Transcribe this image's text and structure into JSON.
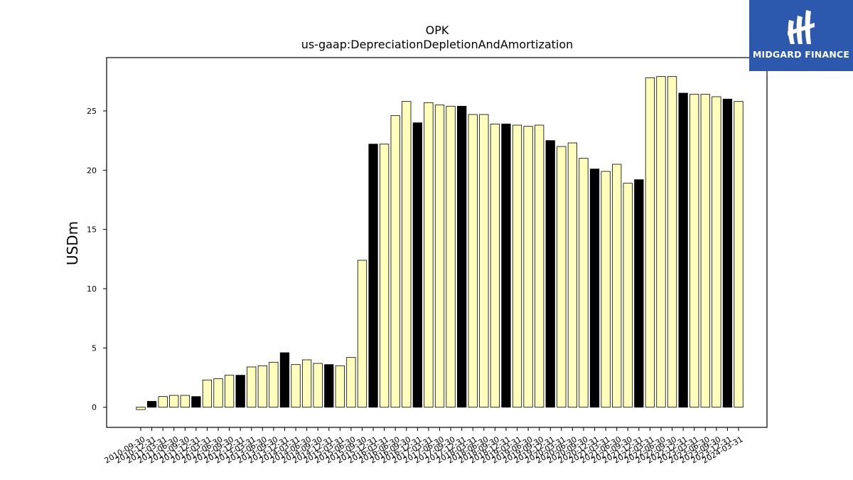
{
  "chart_data": {
    "type": "bar",
    "title": "OPK",
    "subtitle": "us-gaap:DepreciationDepletionAndAmortization",
    "xlabel": "",
    "ylabel": "USDm",
    "ylim": [
      -1.7,
      29.5
    ],
    "yticks": [
      0,
      5,
      10,
      15,
      20,
      25
    ],
    "grid": false,
    "colors": {
      "default": "#ffffbb",
      "highlight": "#000000",
      "edge": "#000000"
    },
    "categories": [
      "2010-09-30",
      "2010-12-31",
      "2011-03-31",
      "2011-06-30",
      "2011-09-30",
      "2011-12-31",
      "2012-03-31",
      "2012-06-30",
      "2012-09-30",
      "2012-12-31",
      "2013-03-31",
      "2013-06-30",
      "2013-09-30",
      "2013-12-31",
      "2014-03-31",
      "2014-06-30",
      "2014-09-30",
      "2014-12-31",
      "2015-03-31",
      "2015-06-30",
      "2015-09-30",
      "2015-12-31",
      "2016-03-31",
      "2016-06-30",
      "2016-09-30",
      "2016-12-31",
      "2017-03-31",
      "2017-06-30",
      "2017-09-30",
      "2017-12-31",
      "2018-03-31",
      "2018-06-30",
      "2018-09-30",
      "2018-12-31",
      "2019-03-31",
      "2019-06-30",
      "2019-09-30",
      "2019-12-31",
      "2020-03-31",
      "2020-06-30",
      "2020-09-30",
      "2020-12-31",
      "2021-03-31",
      "2021-06-30",
      "2021-09-30",
      "2021-12-31",
      "2022-03-31",
      "2022-06-30",
      "2022-09-30",
      "2022-12-31",
      "2023-03-31",
      "2023-06-30",
      "2023-09-30",
      "2023-12-31",
      "2024-03-31"
    ],
    "values": [
      -0.2,
      0.5,
      0.9,
      1.0,
      1.0,
      0.9,
      2.3,
      2.4,
      2.7,
      2.7,
      3.4,
      3.5,
      3.8,
      4.6,
      3.6,
      4.0,
      3.7,
      3.6,
      3.5,
      4.2,
      12.4,
      22.2,
      22.2,
      24.6,
      25.8,
      24.0,
      25.7,
      25.5,
      25.4,
      25.4,
      24.7,
      24.7,
      23.9,
      23.9,
      23.8,
      23.7,
      23.8,
      22.5,
      22.0,
      22.3,
      21.0,
      20.1,
      19.9,
      20.5,
      18.9,
      19.2,
      27.8,
      27.9,
      27.9,
      26.5,
      26.4,
      26.4,
      26.2,
      26.0,
      25.8
    ],
    "highlight": [
      false,
      true,
      false,
      false,
      false,
      true,
      false,
      false,
      false,
      true,
      false,
      false,
      false,
      true,
      false,
      false,
      false,
      true,
      false,
      false,
      false,
      true,
      false,
      false,
      false,
      true,
      false,
      false,
      false,
      true,
      false,
      false,
      false,
      true,
      false,
      false,
      false,
      true,
      false,
      false,
      false,
      true,
      false,
      false,
      false,
      true,
      false,
      false,
      false,
      true,
      false,
      false,
      false,
      true,
      false
    ]
  },
  "logo": {
    "text": "MIDGARD FINANCE"
  }
}
